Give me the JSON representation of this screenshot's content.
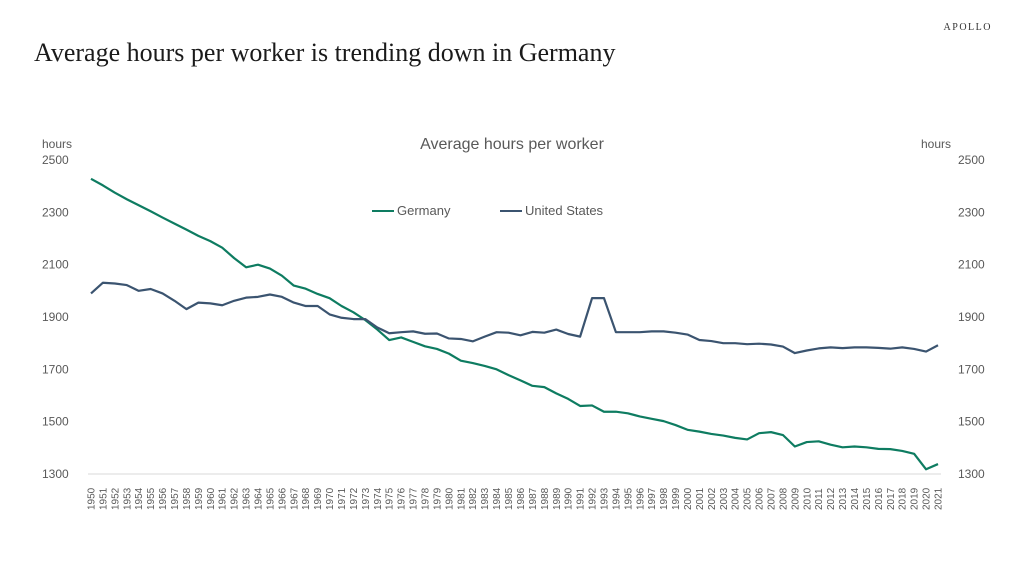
{
  "brand": "APOLLO",
  "headline": "Average hours per worker is trending down in Germany",
  "chart_data": {
    "type": "line",
    "title": "Average hours per worker",
    "ylabel_left": "hours",
    "ylabel_right": "hours",
    "ylim": [
      1300,
      2500
    ],
    "yticks": [
      1300,
      1500,
      1700,
      1900,
      2100,
      2300,
      2500
    ],
    "grid": false,
    "legend_position": "top-center",
    "x": [
      1950,
      1951,
      1952,
      1953,
      1954,
      1955,
      1956,
      1957,
      1958,
      1959,
      1960,
      1961,
      1962,
      1963,
      1964,
      1965,
      1966,
      1967,
      1968,
      1969,
      1970,
      1971,
      1972,
      1973,
      1974,
      1975,
      1976,
      1977,
      1978,
      1979,
      1980,
      1981,
      1982,
      1983,
      1984,
      1985,
      1986,
      1987,
      1988,
      1989,
      1990,
      1991,
      1992,
      1993,
      1994,
      1995,
      1996,
      1997,
      1998,
      1999,
      2000,
      2001,
      2002,
      2003,
      2004,
      2005,
      2006,
      2007,
      2008,
      2009,
      2010,
      2011,
      2012,
      2013,
      2014,
      2015,
      2016,
      2017,
      2018,
      2019,
      2020,
      2021
    ],
    "series": [
      {
        "name": "Germany",
        "color": "#0e7c61",
        "values": [
          2428,
          2403,
          2375,
          2350,
          2327,
          2304,
          2280,
          2257,
          2234,
          2210,
          2190,
          2165,
          2125,
          2090,
          2100,
          2085,
          2058,
          2020,
          2008,
          1988,
          1972,
          1942,
          1918,
          1888,
          1852,
          1812,
          1822,
          1805,
          1788,
          1778,
          1760,
          1733,
          1724,
          1713,
          1700,
          1678,
          1658,
          1637,
          1632,
          1608,
          1587,
          1560,
          1562,
          1538,
          1538,
          1532,
          1520,
          1511,
          1502,
          1487,
          1469,
          1462,
          1453,
          1447,
          1438,
          1432,
          1456,
          1460,
          1449,
          1405,
          1422,
          1425,
          1412,
          1402,
          1405,
          1402,
          1396,
          1395,
          1388,
          1377,
          1318,
          1338
        ]
      },
      {
        "name": "United States",
        "color": "#3b5470",
        "values": [
          1990,
          2031,
          2028,
          2022,
          2000,
          2007,
          1990,
          1962,
          1930,
          1955,
          1952,
          1945,
          1962,
          1974,
          1977,
          1986,
          1977,
          1955,
          1942,
          1942,
          1910,
          1897,
          1892,
          1892,
          1860,
          1838,
          1842,
          1845,
          1836,
          1837,
          1818,
          1816,
          1807,
          1825,
          1842,
          1840,
          1830,
          1843,
          1840,
          1852,
          1835,
          1825,
          1972,
          1972,
          1842,
          1842,
          1842,
          1845,
          1845,
          1840,
          1833,
          1812,
          1808,
          1800,
          1800,
          1796,
          1798,
          1795,
          1787,
          1762,
          1772,
          1780,
          1784,
          1781,
          1784,
          1784,
          1782,
          1779,
          1784,
          1778,
          1768,
          1792
        ]
      }
    ]
  }
}
